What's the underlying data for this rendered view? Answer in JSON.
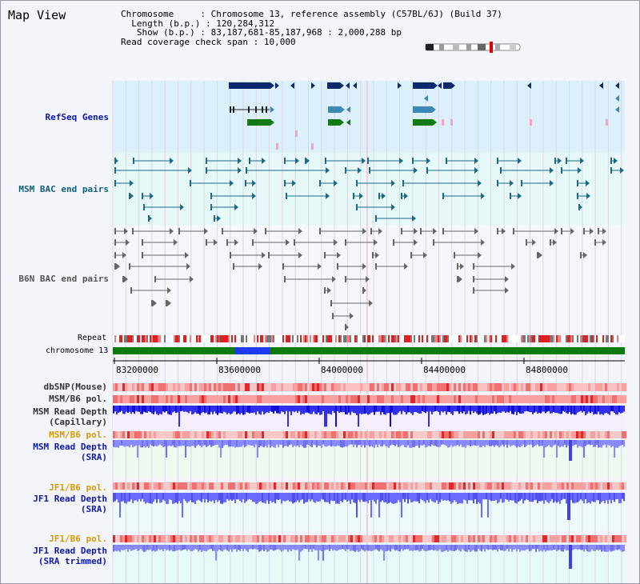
{
  "title": "Map View",
  "info": {
    "chromosome_label": "Chromosome",
    "chromosome_value": "Chromosome 13, reference assembly (C57BL/6J) (Build 37)",
    "length_label": "Length (b.p.)",
    "length_value": "120,284,312",
    "show_label": "Show (b.p.)",
    "show_value": "83,187,681-85,187,968 : 2,000,288 bp",
    "coverage_label": "Read coverage check span",
    "coverage_value": "10,000"
  },
  "tracks": {
    "refseq": "RefSeq Genes",
    "msm_bac": "MSM BAC end pairs",
    "b6n_bac": "B6N BAC end pairs",
    "repeat": "Repeat",
    "chromosome": "chromosome 13",
    "dbsnp": "dbSNP(Mouse)",
    "msm_b6_pol_1": "MSM/B6 pol.",
    "msm_depth_cap": "MSM Read Depth\n(Capillary)",
    "msm_b6_pol_2": "MSM/B6 pol.",
    "msm_depth_sra": "MSM Read Depth\n(SRA)",
    "jf1_b6_pol_1": "JF1/B6 pol.",
    "jf1_depth_sra": "JF1 Read Depth\n(SRA)",
    "jf1_b6_pol_2": "JF1/B6 pol.",
    "jf1_depth_trim": "JF1 Read Depth\n(SRA trimmed)"
  },
  "axis": {
    "ticks": [
      "83200000",
      "83600000",
      "84000000",
      "84400000",
      "84800000"
    ]
  },
  "colors": {
    "gene_dark": "#0b2a6e",
    "gene_mid": "#3d87b5",
    "gene_green": "#127a12",
    "msm_bac": "#1b6a8a",
    "b6n_bac": "#666666",
    "depth_blue": "#2222ee",
    "depth_light": "#7a7aff",
    "pol_red": "#f06060"
  }
}
